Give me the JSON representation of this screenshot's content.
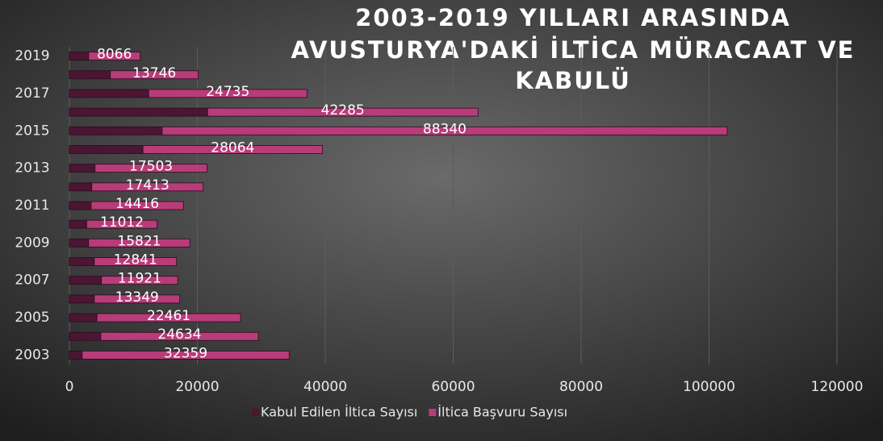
{
  "chart_data": {
    "type": "bar",
    "orientation": "horizontal",
    "stacked": true,
    "title": [
      "2003-2019 YILLARI ARASINDA",
      "AVUSTURYA'DAKİ İLTİCA MÜRACAAT VE",
      "KABULÜ"
    ],
    "categories": [
      "2003",
      null,
      "2005",
      null,
      "2007",
      null,
      "2009",
      null,
      "2011",
      null,
      "2013",
      null,
      "2015",
      null,
      "2017",
      null,
      "2019"
    ],
    "series": [
      {
        "name": "Kabul Edilen İltica Sayısı",
        "color": "#4a1632",
        "values": [
          2000,
          4900,
          4300,
          3900,
          5000,
          3900,
          3000,
          2700,
          3400,
          3500,
          4000,
          11500,
          14500,
          21600,
          12400,
          6400,
          3000
        ]
      },
      {
        "name": "İltica Başvuru Sayısı",
        "color": "#b83c7a",
        "data_labels": true,
        "values": [
          32359,
          24634,
          22461,
          13349,
          11921,
          12841,
          15821,
          11012,
          14416,
          17413,
          17503,
          28064,
          88340,
          42285,
          24735,
          13746,
          8066
        ]
      }
    ],
    "xlim": [
      0,
      120000
    ],
    "xticks": [
      0,
      20000,
      40000,
      60000,
      80000,
      100000,
      120000
    ],
    "grid": true,
    "legend": "bottom"
  }
}
